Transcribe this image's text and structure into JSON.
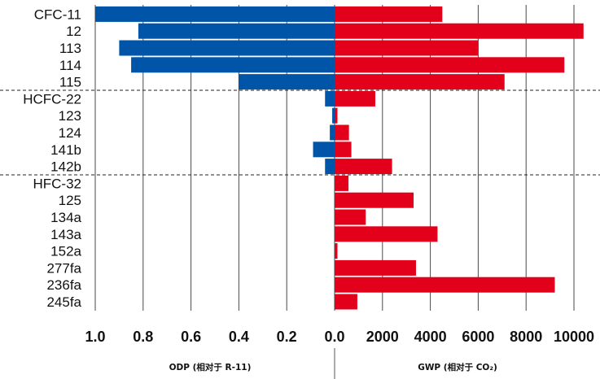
{
  "chart_data": {
    "type": "bar",
    "orientation": "horizontal",
    "categories": [
      "CFC-11",
      "12",
      "113",
      "114",
      "115",
      "HCFC-22",
      "123",
      "124",
      "141b",
      "142b",
      "HFC-32",
      "125",
      "134a",
      "143a",
      "152a",
      "277fa",
      "236fa",
      "245fa"
    ],
    "groups": [
      {
        "name": "CFC",
        "range": [
          0,
          4
        ]
      },
      {
        "name": "HCFC",
        "range": [
          5,
          9
        ]
      },
      {
        "name": "HFC",
        "range": [
          10,
          17
        ]
      }
    ],
    "series": [
      {
        "name": "ODP",
        "color": "#0055a8",
        "direction": "left",
        "values": [
          1.0,
          0.82,
          0.9,
          0.85,
          0.4,
          0.04,
          0.01,
          0.02,
          0.09,
          0.04,
          0,
          0,
          0,
          0,
          0,
          0,
          0,
          0
        ]
      },
      {
        "name": "GWP",
        "color": "#e2001a",
        "direction": "right",
        "values": [
          4500,
          10400,
          6000,
          9600,
          7100,
          1700,
          120,
          600,
          700,
          2400,
          580,
          3300,
          1300,
          4300,
          120,
          3400,
          9200,
          950
        ]
      }
    ],
    "left_axis": {
      "range": [
        0,
        1.0
      ],
      "ticks": [
        "1.0",
        "0.8",
        "0.6",
        "0.4",
        "0.2",
        "0.0"
      ],
      "tick_values": [
        1.0,
        0.8,
        0.6,
        0.4,
        0.2,
        0.0
      ],
      "title": "ODP (相对于 R-11)"
    },
    "right_axis": {
      "range": [
        0,
        10400
      ],
      "ticks": [
        "2000",
        "4000",
        "6000",
        "8000",
        "10000"
      ],
      "tick_values": [
        2000,
        4000,
        6000,
        8000,
        10000
      ],
      "title": "GWP (相对于 CO₂)"
    },
    "grid": true,
    "legend": "none"
  }
}
